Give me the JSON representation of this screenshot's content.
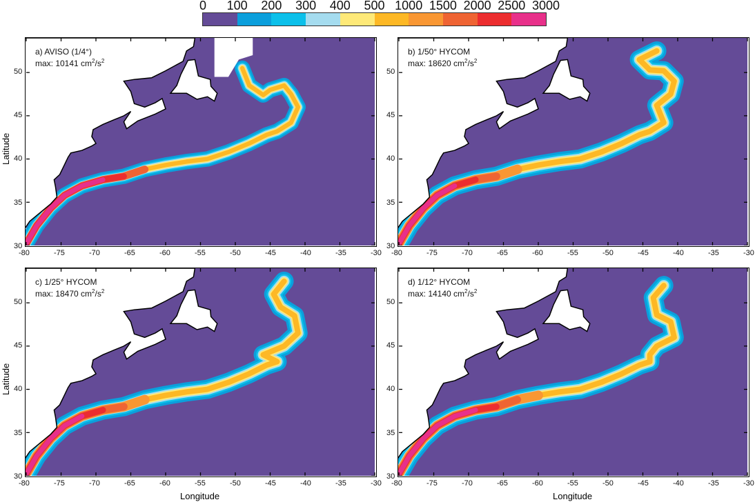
{
  "colorbar": {
    "labels": [
      "0",
      "100",
      "200",
      "300",
      "400",
      "500",
      "1000",
      "1500",
      "2000",
      "2500",
      "3000"
    ],
    "colors": [
      "#644b97",
      "#0b9fdc",
      "#0cc0ea",
      "#a5dcef",
      "#fee978",
      "#fdb825",
      "#f99733",
      "#ef6433",
      "#ec2d2f",
      "#e8308a"
    ]
  },
  "axes": {
    "xlabel": "Longitude",
    "ylabel": "Latitude",
    "xticks": [
      "-80",
      "-75",
      "-70",
      "-65",
      "-60",
      "-55",
      "-50",
      "-45",
      "-40",
      "-35",
      "-30"
    ],
    "yticks": [
      "50",
      "45",
      "40",
      "35",
      "30"
    ]
  },
  "panels": [
    {
      "title": "a) AVISO (1/4°)",
      "max_prefix": "max: 10141 cm",
      "max_mid": "/s",
      "unit_exp": "2"
    },
    {
      "title": "b) 1/50° HYCOM",
      "max_prefix": "max: 18620 cm",
      "max_mid": "/s",
      "unit_exp": "2"
    },
    {
      "title": "c) 1/25° HYCOM",
      "max_prefix": "max: 18470 cm",
      "max_mid": "/s",
      "unit_exp": "2"
    },
    {
      "title": "d) 1/12° HYCOM",
      "max_prefix": "max: 14140 cm",
      "max_mid": "/s",
      "unit_exp": "2"
    }
  ]
}
